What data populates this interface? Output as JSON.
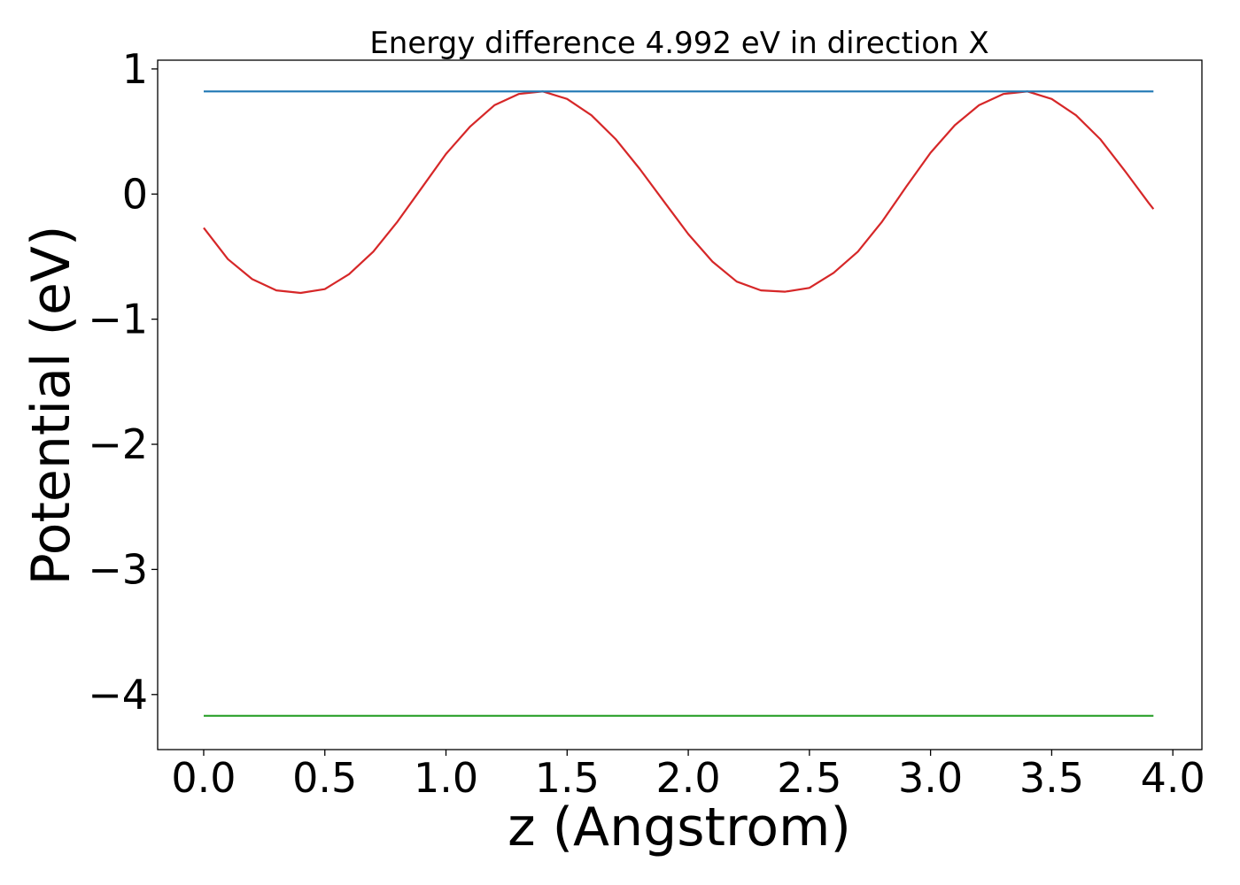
{
  "chart_data": {
    "type": "line",
    "title": "Energy difference 4.992 eV in direction X",
    "xlabel": "z (Angstrom)",
    "ylabel": "Potential (eV)",
    "xlim": [
      -0.19,
      4.12
    ],
    "ylim": [
      -4.44,
      1.07
    ],
    "xticks": [
      0.0,
      0.5,
      1.0,
      1.5,
      2.0,
      2.5,
      3.0,
      3.5,
      4.0
    ],
    "xtick_labels": [
      "0.0",
      "0.5",
      "1.0",
      "1.5",
      "2.0",
      "2.5",
      "3.0",
      "3.5",
      "4.0"
    ],
    "yticks": [
      1,
      0,
      -1,
      -2,
      -3,
      -4
    ],
    "ytick_labels": [
      "1",
      "0",
      "−1",
      "−2",
      "−3",
      "−4"
    ],
    "grid": false,
    "series": [
      {
        "color": "#d62728",
        "x": [
          0.0,
          0.1,
          0.2,
          0.3,
          0.4,
          0.5,
          0.6,
          0.7,
          0.8,
          0.9,
          1.0,
          1.1,
          1.2,
          1.3,
          1.4,
          1.5,
          1.6,
          1.7,
          1.8,
          1.9,
          2.0,
          2.1,
          2.2,
          2.3,
          2.4,
          2.5,
          2.6,
          2.7,
          2.8,
          2.9,
          3.0,
          3.1,
          3.2,
          3.3,
          3.4,
          3.5,
          3.6,
          3.7,
          3.8,
          3.9,
          3.92
        ],
        "y": [
          -0.27,
          -0.52,
          -0.68,
          -0.77,
          -0.79,
          -0.76,
          -0.64,
          -0.46,
          -0.22,
          0.05,
          0.32,
          0.54,
          0.71,
          0.8,
          0.82,
          0.76,
          0.63,
          0.44,
          0.2,
          -0.06,
          -0.32,
          -0.54,
          -0.7,
          -0.77,
          -0.78,
          -0.75,
          -0.63,
          -0.46,
          -0.22,
          0.06,
          0.33,
          0.55,
          0.71,
          0.8,
          0.82,
          0.76,
          0.63,
          0.44,
          0.19,
          -0.07,
          -0.12
        ]
      },
      {
        "color": "#1f77b4",
        "x": [
          0.0,
          3.92
        ],
        "y": [
          0.82,
          0.82
        ]
      },
      {
        "color": "#2ca02c",
        "x": [
          0.0,
          3.92
        ],
        "y": [
          -4.17,
          -4.17
        ]
      }
    ]
  }
}
